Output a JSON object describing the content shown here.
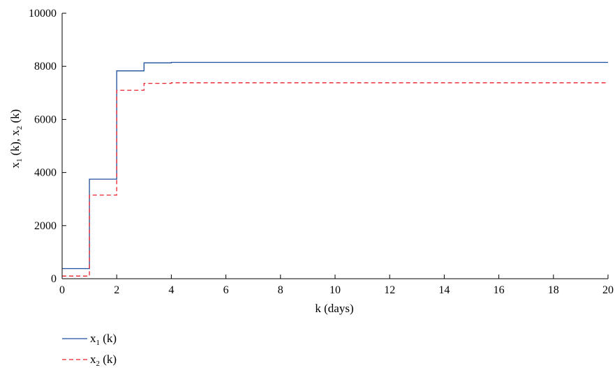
{
  "chart_data": {
    "type": "line",
    "step": true,
    "xlabel": "k (days)",
    "ylabel": "x1 (k), x2 (k)",
    "xlim": [
      0,
      20
    ],
    "ylim": [
      0,
      10000
    ],
    "xticks": [
      0,
      2,
      4,
      6,
      8,
      10,
      12,
      14,
      16,
      18,
      20
    ],
    "yticks": [
      0,
      2000,
      4000,
      6000,
      8000,
      10000
    ],
    "grid": false,
    "legend_position": "bottom-left",
    "series": [
      {
        "name": "x1 (k)",
        "color": "#1f4e9c",
        "style": "solid",
        "x": [
          0,
          1,
          2,
          3,
          4,
          20
        ],
        "y": [
          380,
          3750,
          7830,
          8130,
          8150,
          8150
        ]
      },
      {
        "name": "x2 (k)",
        "color": "#e8202a",
        "style": "dashed",
        "x": [
          0,
          1,
          2,
          3,
          4,
          20
        ],
        "y": [
          100,
          3150,
          7100,
          7360,
          7380,
          7380
        ]
      }
    ]
  }
}
